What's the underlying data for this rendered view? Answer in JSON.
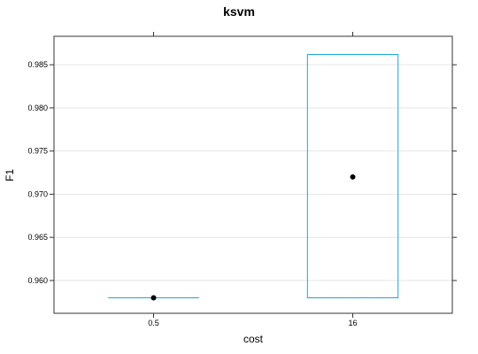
{
  "chart_data": {
    "type": "box",
    "title": "ksvm",
    "xlabel": "cost",
    "ylabel": "F1",
    "categories": [
      "0.5",
      "16"
    ],
    "boxes": [
      {
        "category": "0.5",
        "min": 0.958,
        "q1": 0.958,
        "median": 0.958,
        "q3": 0.958,
        "max": 0.958
      },
      {
        "category": "16",
        "min": 0.958,
        "q1": 0.958,
        "median": 0.972,
        "q3": 0.9862,
        "max": 0.9862
      }
    ],
    "ylim": [
      0.9562,
      0.9883
    ],
    "yticks": [
      0.96,
      0.965,
      0.97,
      0.975,
      0.98,
      0.985
    ],
    "ytick_labels": [
      "0.960",
      "0.965",
      "0.970",
      "0.975",
      "0.980",
      "0.985"
    ],
    "grid": true,
    "colors": {
      "box": "#1aa7d6",
      "grid": "#e6e6e6",
      "median_dot": "#000000",
      "frame": "#333333"
    }
  }
}
